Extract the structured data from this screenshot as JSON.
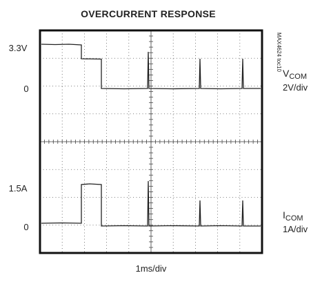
{
  "title": "OVERCURRENT RESPONSE",
  "left_labels": [
    "3.3V",
    "0",
    "1.5A",
    "0"
  ],
  "right_labels": {
    "voltage": {
      "symbol": "V",
      "subscript": "COM",
      "scale": "2V/div"
    },
    "current": {
      "symbol": "I",
      "subscript": "COM",
      "scale": "1A/div"
    }
  },
  "x_label": "1ms/div",
  "watermark": "MAX4624 toc10"
}
